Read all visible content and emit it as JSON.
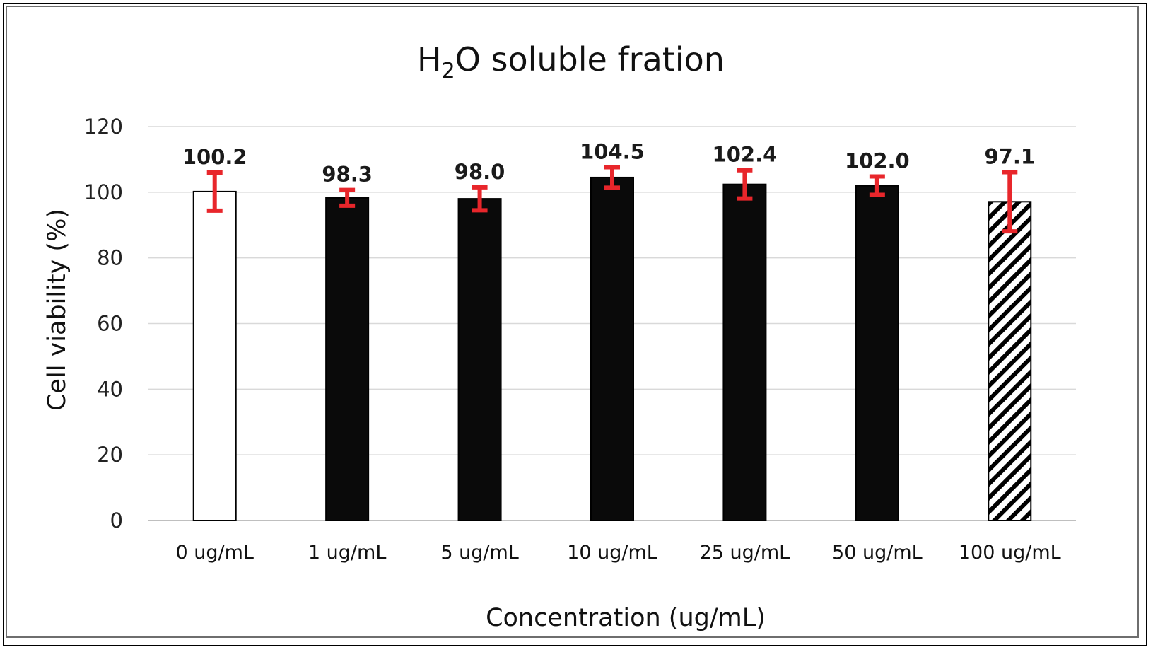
{
  "chart_data": {
    "type": "bar",
    "title_main": "H",
    "title_sub": "2",
    "title_rest": "O soluble fration",
    "xlabel": "Concentration  (ug/mL)",
    "ylabel": "Cell viability (%)",
    "ylim": [
      0,
      120
    ],
    "yticks": [
      {
        "label": "0",
        "value": 0
      },
      {
        "label": "20",
        "value": 20
      },
      {
        "label": "40",
        "value": 40
      },
      {
        "label": "60",
        "value": 60
      },
      {
        "label": "80",
        "value": 80
      },
      {
        "label": "100",
        "value": 100
      },
      {
        "label": "120",
        "value": 120
      }
    ],
    "grid": true,
    "legend": "none",
    "categories": [
      "0 ug/mL",
      "1 ug/mL",
      "5 ug/mL",
      "10 ug/mL",
      "25 ug/mL",
      "50 ug/mL",
      "100 ug/mL"
    ],
    "values": [
      100.2,
      98.3,
      98.0,
      104.5,
      102.4,
      102.0,
      97.1
    ],
    "value_labels": [
      "100.2",
      "98.3",
      "98.0",
      "104.5",
      "102.4",
      "102.0",
      "97.1"
    ],
    "error": [
      5.8,
      2.4,
      3.5,
      3.1,
      4.3,
      2.8,
      9.0
    ],
    "fills": [
      "white",
      "black",
      "black",
      "black",
      "black",
      "black",
      "hatched"
    ],
    "colors": {
      "bar_solid": "#0a0a0a",
      "bar_outline": "#000000",
      "error_bar": "#e8262b",
      "grid": "#d9d9d9",
      "axis": "#bfbfbf"
    }
  }
}
